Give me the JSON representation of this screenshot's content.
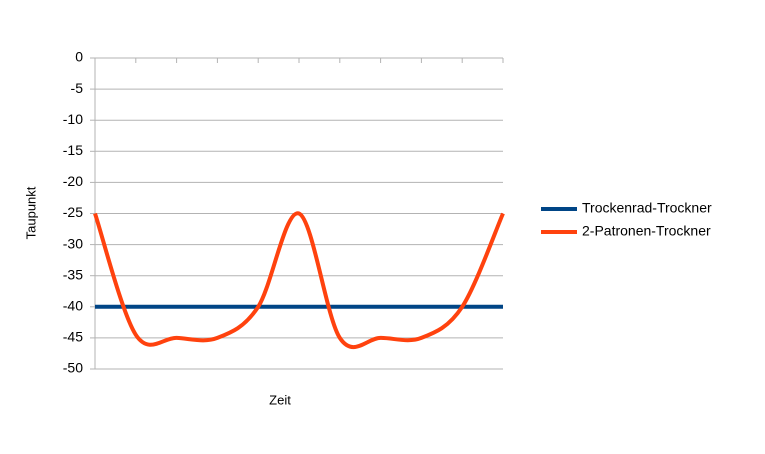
{
  "chart_data": {
    "type": "line",
    "x_label": "Zeit",
    "y_label": "Taupunkt",
    "categories": [
      null,
      null,
      null,
      null,
      null,
      null,
      null,
      null,
      null,
      null,
      null
    ],
    "series": [
      {
        "name": "Trockenrad-Trockner",
        "color": "#004586",
        "values": [
          -40,
          -40,
          -40,
          -40,
          -40,
          -40,
          -40,
          -40,
          -40,
          -40,
          -40
        ]
      },
      {
        "name": "2-Patronen-Trockner",
        "color": "#ff420e",
        "values": [
          -25,
          -44.5,
          -45,
          -45,
          -40,
          -25,
          -45,
          -45,
          -45,
          -40,
          -25
        ]
      }
    ],
    "ylim": [
      -50,
      0
    ],
    "yticks": [
      0,
      -5,
      -10,
      -15,
      -20,
      -25,
      -30,
      -35,
      -40,
      -45,
      -50
    ],
    "grid": true,
    "smooth": true,
    "legend": "right"
  }
}
